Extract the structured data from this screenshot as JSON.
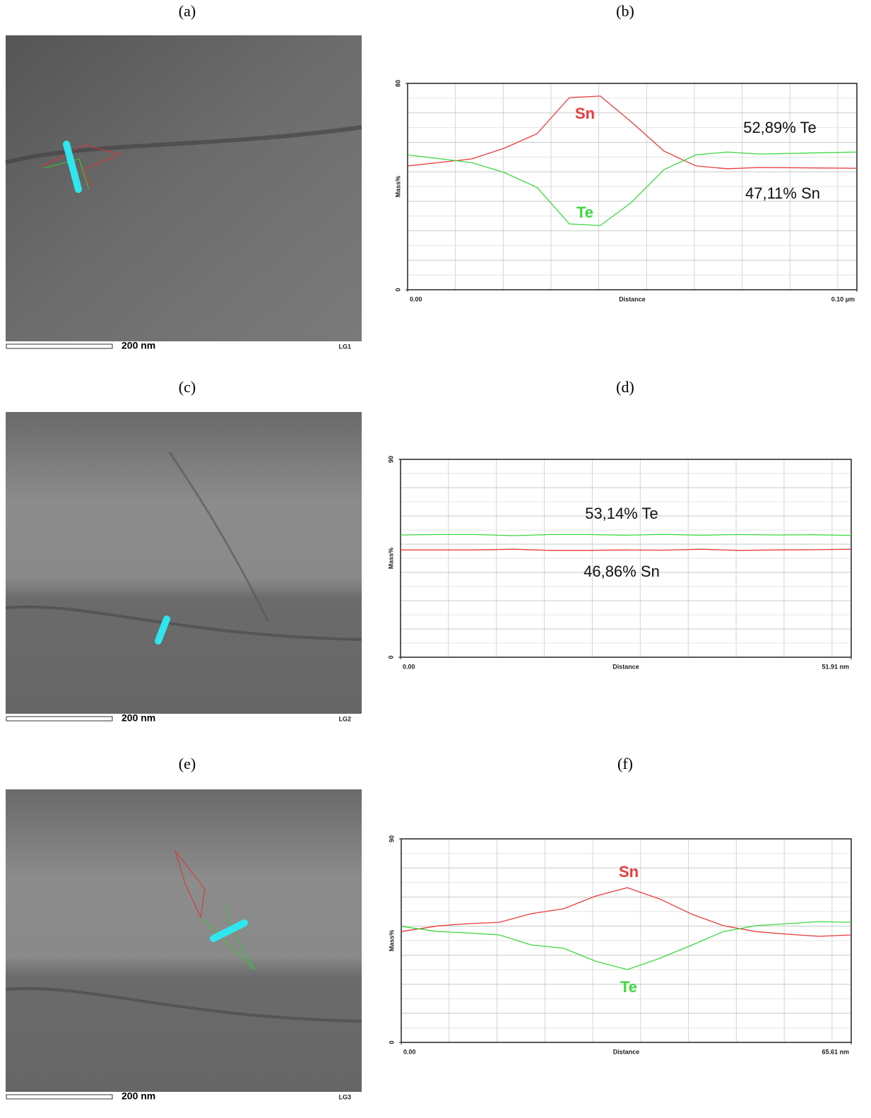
{
  "panel_labels": [
    "(a)",
    "(b)",
    "(c)",
    "(d)",
    "(e)",
    "(f)"
  ],
  "images": [
    {
      "scale_label": "200 nm",
      "id": "LG1"
    },
    {
      "scale_label": "200 nm",
      "id": "LG2"
    },
    {
      "scale_label": "200 nm",
      "id": "LG3"
    }
  ],
  "chart_data": [
    {
      "type": "line",
      "x_label": "Distance",
      "y_label": "Mass%",
      "xlim": [
        0,
        0.1
      ],
      "xticks": [
        {
          "value": 0,
          "label": "0.00"
        },
        {
          "value": 0.1,
          "label": "0.10 µm"
        }
      ],
      "ylim": [
        0,
        80
      ],
      "yticks": [
        0,
        80
      ],
      "grid": true,
      "x": [
        0,
        0.0143,
        0.0214,
        0.0288,
        0.036,
        0.0429,
        0.0497,
        0.0571,
        0.0642,
        0.0712,
        0.0783,
        0.1
      ],
      "series": [
        {
          "name": "Sn",
          "color": "#e83a3a",
          "values": [
            48,
            50.7,
            54.8,
            60.5,
            74.5,
            75.1,
            65.2,
            53.7,
            48,
            46.9,
            47.4,
            47.1
          ]
        },
        {
          "name": "Te",
          "color": "#3ed83e",
          "values": [
            52.3,
            49.3,
            45.5,
            39.7,
            25.5,
            24.9,
            33.7,
            46.6,
            52.3,
            53.4,
            52.6,
            53.4
          ]
        }
      ],
      "annotations": [
        "52,89% Te",
        "47,11% Sn"
      ]
    },
    {
      "type": "line",
      "x_label": "Distance",
      "y_label": "Mass%",
      "xlim": [
        0,
        51.91
      ],
      "xticks": [
        {
          "value": 0,
          "label": "0.00"
        },
        {
          "value": 51.91,
          "label": "51.91 nm"
        }
      ],
      "ylim": [
        0,
        90
      ],
      "yticks": [
        0,
        90
      ],
      "grid": true,
      "x": [
        0,
        4.33,
        8.65,
        12.98,
        17.3,
        21.63,
        25.96,
        30.28,
        34.61,
        38.93,
        43.26,
        47.59,
        51.91
      ],
      "series": [
        {
          "name": "Te",
          "color": "#3ed83e",
          "values": [
            55.6,
            55.8,
            55.8,
            55.3,
            55.8,
            55.8,
            55.5,
            55.9,
            55.5,
            55.8,
            55.6,
            55.7,
            55.4
          ]
        },
        {
          "name": "Sn",
          "color": "#e83a3a",
          "values": [
            48.8,
            48.8,
            48.8,
            49.1,
            48.6,
            48.6,
            48.8,
            48.7,
            49.1,
            48.6,
            48.8,
            48.9,
            49.1
          ]
        }
      ],
      "annotations": [
        "53,14% Te",
        "46,86% Sn"
      ]
    },
    {
      "type": "line",
      "x_label": "Distance",
      "y_label": "Mass%",
      "xlim": [
        0,
        65.61
      ],
      "xticks": [
        {
          "value": 0,
          "label": "0.00"
        },
        {
          "value": 65.61,
          "label": "65.61 nm"
        }
      ],
      "ylim": [
        0,
        90
      ],
      "yticks": [
        0,
        90
      ],
      "grid": true,
      "x": [
        0,
        5.36,
        9.79,
        14.32,
        18.95,
        23.69,
        28.33,
        32.96,
        37.7,
        42.44,
        46.97,
        51.71,
        56.35,
        60.98,
        65.61
      ],
      "series": [
        {
          "name": "Sn",
          "color": "#e83a3a",
          "values": [
            49,
            51.5,
            52.5,
            53.1,
            56.9,
            59.1,
            64.7,
            68.4,
            63.4,
            56.6,
            51.6,
            49,
            47.8,
            46.9,
            47.5
          ]
        },
        {
          "name": "Te",
          "color": "#3ed83e",
          "values": [
            51.3,
            49,
            48.4,
            47.5,
            43.1,
            41.6,
            35.9,
            32.2,
            37.2,
            43.1,
            49,
            51.6,
            52.5,
            53.4,
            53.1
          ]
        }
      ],
      "annotations": []
    }
  ]
}
